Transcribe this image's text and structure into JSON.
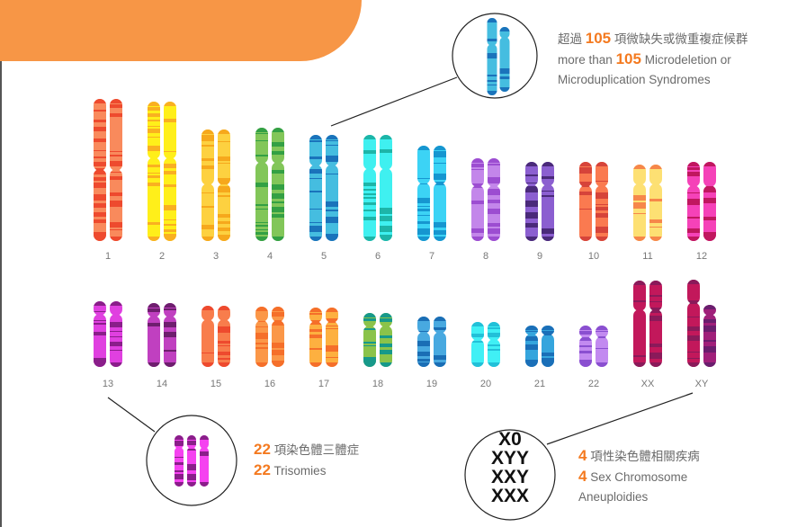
{
  "chromosomes": [
    {
      "label": "1",
      "light": "#f98a5c",
      "dark": "#ee4a2e"
    },
    {
      "label": "2",
      "light": "#ffef1a",
      "dark": "#f9b021"
    },
    {
      "label": "3",
      "light": "#fdd140",
      "dark": "#f6a81c"
    },
    {
      "label": "4",
      "light": "#82c659",
      "dark": "#33a044"
    },
    {
      "label": "5",
      "light": "#45bde0",
      "dark": "#1a73bb"
    },
    {
      "label": "6",
      "light": "#3ff0f0",
      "dark": "#1db5a8"
    },
    {
      "label": "7",
      "light": "#3cd3f5",
      "dark": "#1696d0"
    },
    {
      "label": "8",
      "light": "#c386ea",
      "dark": "#9c4dd1"
    },
    {
      "label": "9",
      "light": "#8b5fd0",
      "dark": "#4a2a7a"
    },
    {
      "label": "10",
      "light": "#fa7a50",
      "dark": "#d6443a"
    },
    {
      "label": "11",
      "light": "#fde073",
      "dark": "#f6874a"
    },
    {
      "label": "12",
      "light": "#f542b8",
      "dark": "#c0175f"
    },
    {
      "label": "13",
      "light": "#e040e0",
      "dark": "#8a1e8a"
    },
    {
      "label": "14",
      "light": "#c040c0",
      "dark": "#6e1e6e"
    },
    {
      "label": "15",
      "light": "#f87d4c",
      "dark": "#ee4a2e"
    },
    {
      "label": "16",
      "light": "#fb9748",
      "dark": "#f56f2a"
    },
    {
      "label": "17",
      "light": "#fdb040",
      "dark": "#f56f2a"
    },
    {
      "label": "18",
      "light": "#8bc34a",
      "dark": "#17998a"
    },
    {
      "label": "19",
      "light": "#48a9e0",
      "dark": "#1a6eb5"
    },
    {
      "label": "20",
      "light": "#40f0f5",
      "dark": "#22c0d8"
    },
    {
      "label": "21",
      "light": "#35a5dd",
      "dark": "#1a6fb8"
    },
    {
      "label": "22",
      "light": "#c28af0",
      "dark": "#8a4fd0"
    },
    {
      "label": "XX",
      "light": "#c2185b",
      "dark": "#8a1a5a"
    },
    {
      "label": "XY",
      "light": "#c2185b",
      "dark": "#8a1a5a",
      "y_light": "#a0207a",
      "y_dark": "#6a1e6e"
    }
  ],
  "microdeletion": {
    "zh_pre": "超過",
    "count": "105",
    "zh_post": "項微缺失或微重複症候群",
    "en_pre": "more than",
    "en_post": "Microdeletion or",
    "en_line2": "Microduplication Syndromes",
    "colors": {
      "light": "#45bde0",
      "dark": "#1a73bb"
    }
  },
  "trisomies": {
    "count": "22",
    "zh": "項染色體三體症",
    "en": "Trisomies",
    "colors": {
      "light": "#f542f0",
      "dark": "#8a1e8a"
    }
  },
  "sex": {
    "count": "4",
    "zh": "項性染色體相關疾病",
    "en": "Sex Chromosome",
    "en_line2": "Aneuploidies",
    "karyotypes": [
      "X0",
      "XYY",
      "XXY",
      "XXX"
    ]
  }
}
